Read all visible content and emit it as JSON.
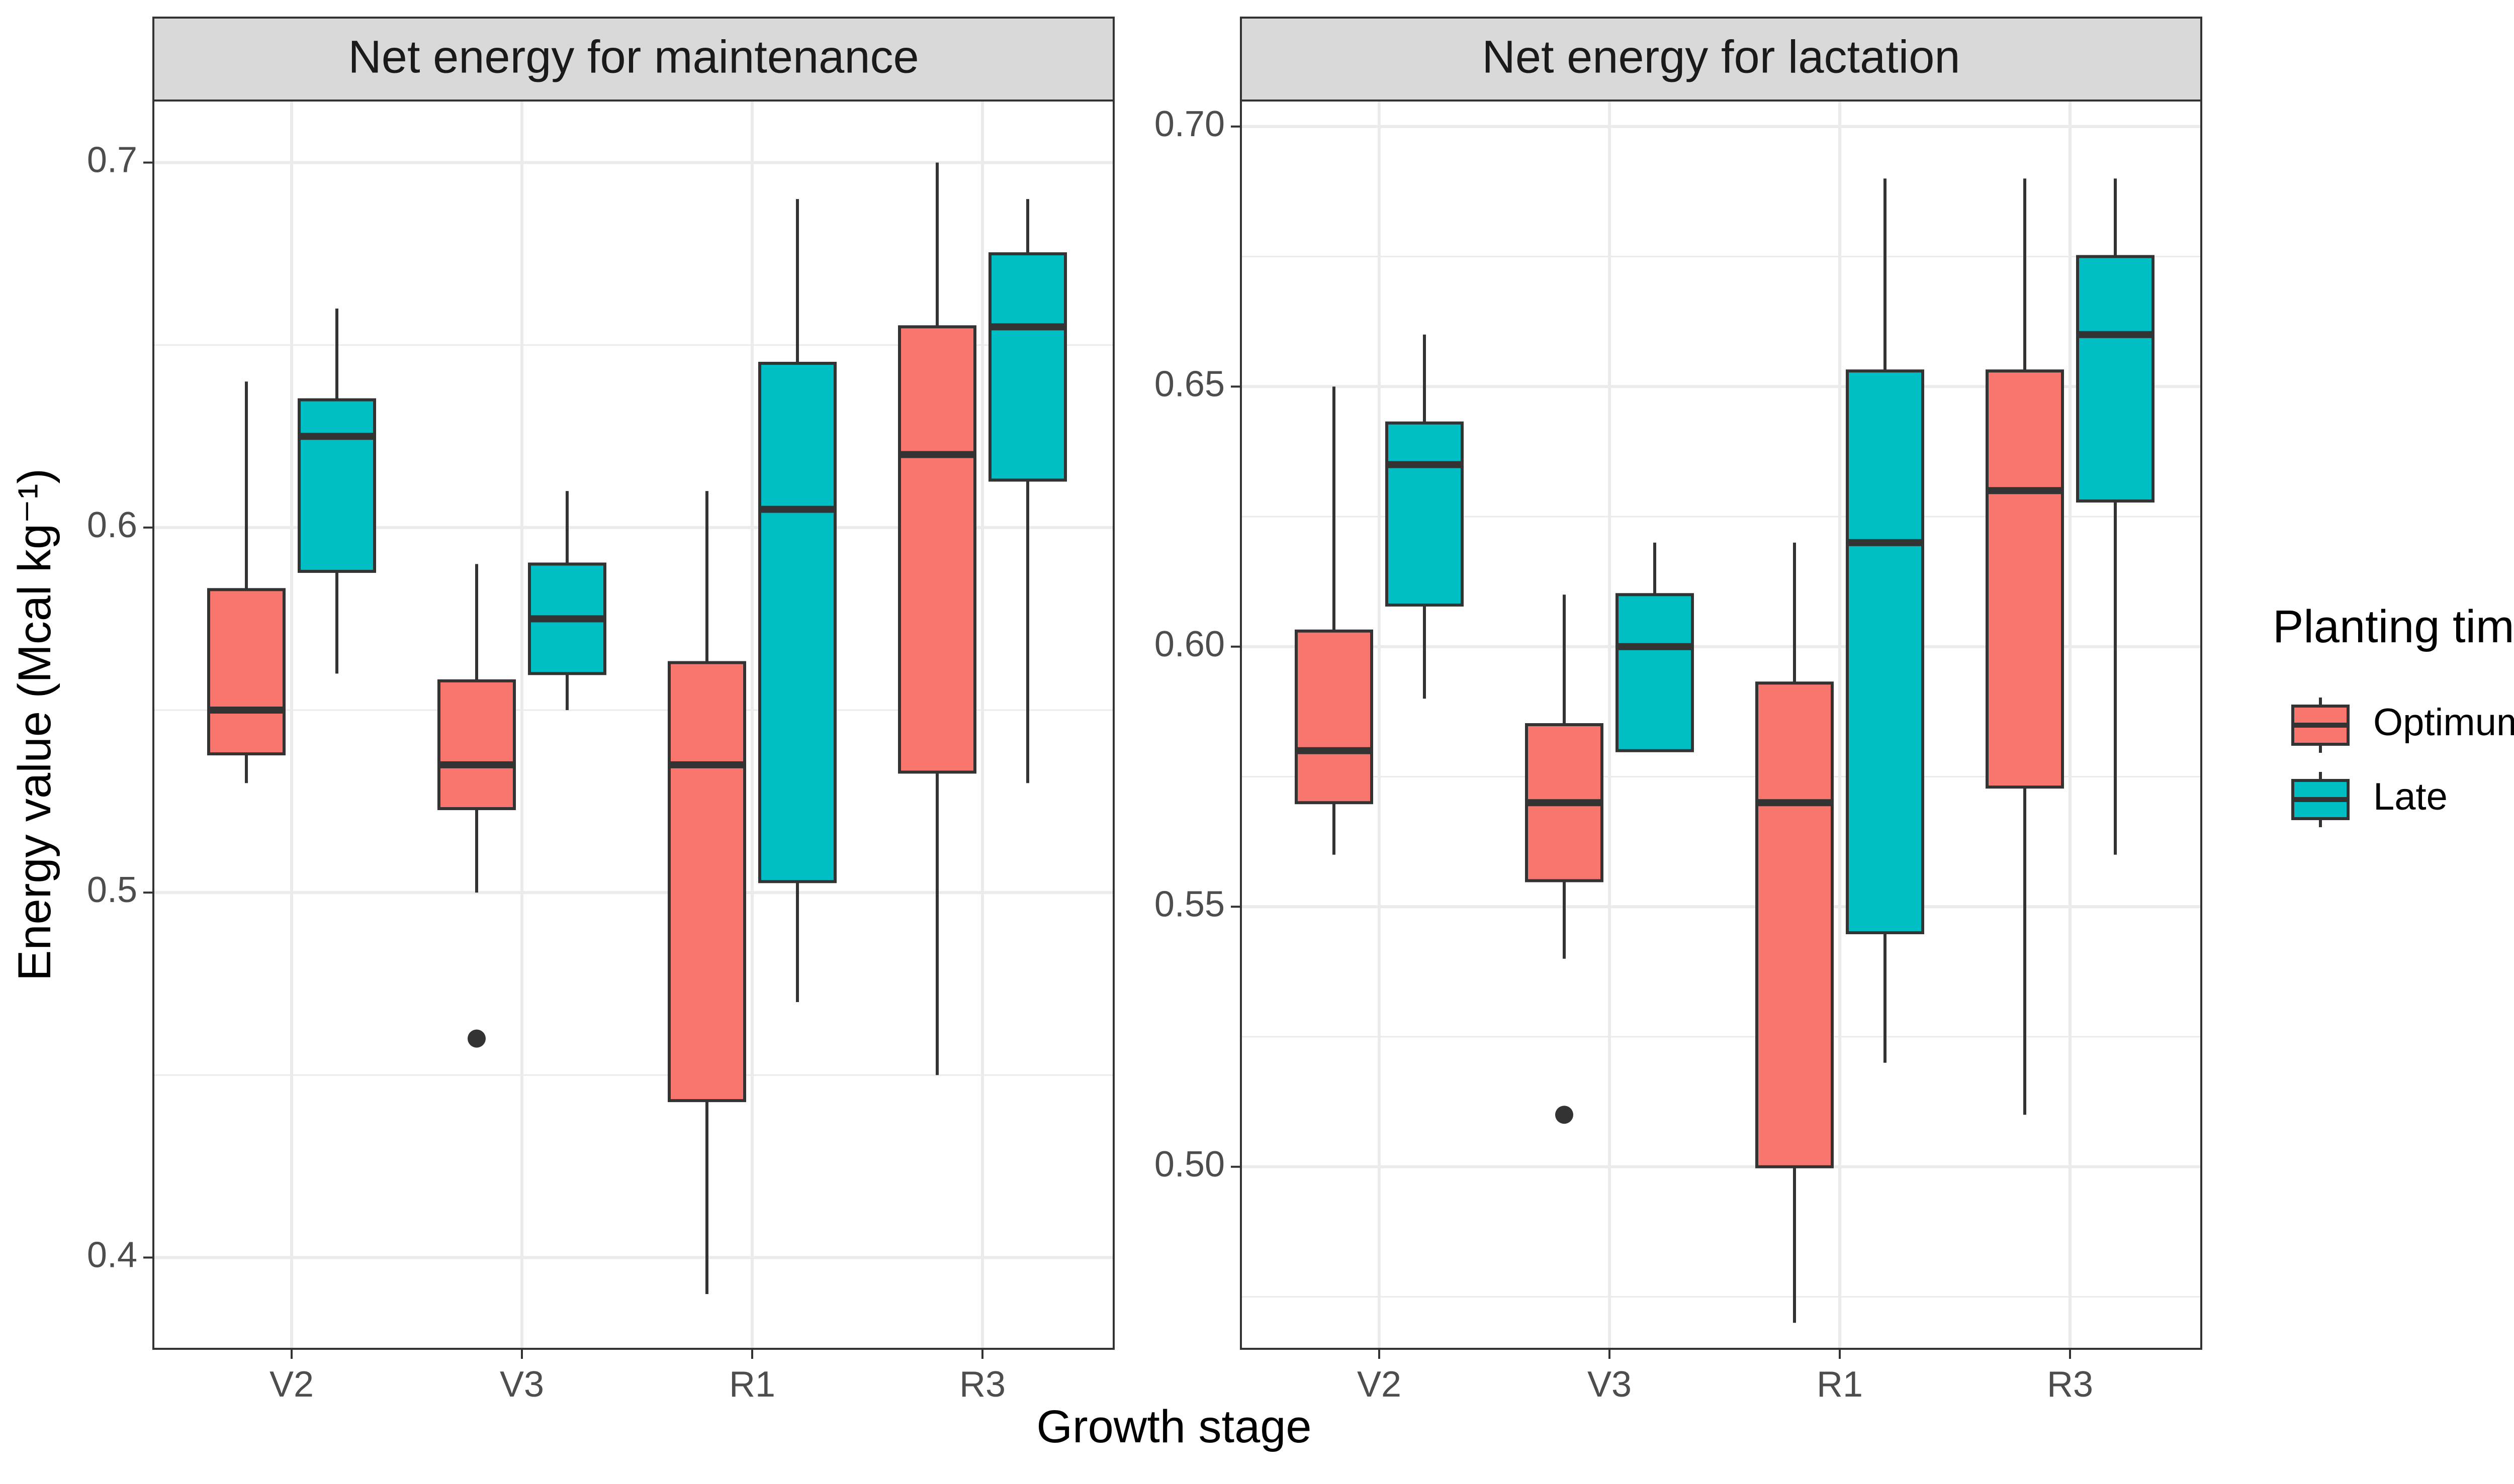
{
  "chart_data": {
    "type": "boxplot",
    "xlabel": "Growth stage",
    "ylabel": "Energy value (Mcal kg⁻¹)",
    "categories": [
      "V2",
      "V3",
      "R1",
      "R3"
    ],
    "legend": {
      "title": "Planting time",
      "position": "right",
      "items": [
        {
          "name": "Optimum",
          "color": "#F8766D"
        },
        {
          "name": "Late",
          "color": "#00BFC4"
        }
      ]
    },
    "colors": {
      "box_stroke": "#333333",
      "grid": "#EBEBEB",
      "strip": "#D9D9D9",
      "axis_text": "#4D4D4D"
    },
    "panels": [
      {
        "title": "Net energy for maintenance",
        "ylim": [
          0.375,
          0.717
        ],
        "yticks": [
          0.4,
          0.5,
          0.6,
          0.7
        ],
        "ytick_labels": [
          "0.4",
          "0.5",
          "0.6",
          "0.7"
        ],
        "series": [
          {
            "name": "Optimum",
            "boxes": [
              {
                "category": "V2",
                "min": 0.53,
                "q1": 0.538,
                "median": 0.55,
                "q3": 0.583,
                "max": 0.64,
                "outliers": []
              },
              {
                "category": "V3",
                "min": 0.5,
                "q1": 0.523,
                "median": 0.535,
                "q3": 0.558,
                "max": 0.59,
                "outliers": [
                  0.46
                ]
              },
              {
                "category": "R1",
                "min": 0.39,
                "q1": 0.443,
                "median": 0.535,
                "q3": 0.563,
                "max": 0.61,
                "outliers": []
              },
              {
                "category": "R3",
                "min": 0.45,
                "q1": 0.533,
                "median": 0.62,
                "q3": 0.655,
                "max": 0.7,
                "outliers": []
              }
            ]
          },
          {
            "name": "Late",
            "boxes": [
              {
                "category": "V2",
                "min": 0.56,
                "q1": 0.588,
                "median": 0.625,
                "q3": 0.635,
                "max": 0.66,
                "outliers": []
              },
              {
                "category": "V3",
                "min": 0.55,
                "q1": 0.56,
                "median": 0.575,
                "q3": 0.59,
                "max": 0.61,
                "outliers": []
              },
              {
                "category": "R1",
                "min": 0.47,
                "q1": 0.503,
                "median": 0.605,
                "q3": 0.645,
                "max": 0.69,
                "outliers": []
              },
              {
                "category": "R3",
                "min": 0.53,
                "q1": 0.613,
                "median": 0.655,
                "q3": 0.675,
                "max": 0.69,
                "outliers": []
              }
            ]
          }
        ]
      },
      {
        "title": "Net energy for lactation",
        "ylim": [
          0.465,
          0.705
        ],
        "yticks": [
          0.5,
          0.55,
          0.6,
          0.65,
          0.7
        ],
        "ytick_labels": [
          "0.50",
          "0.55",
          "0.60",
          "0.65",
          "0.70"
        ],
        "series": [
          {
            "name": "Optimum",
            "boxes": [
              {
                "category": "V2",
                "min": 0.56,
                "q1": 0.57,
                "median": 0.58,
                "q3": 0.603,
                "max": 0.65,
                "outliers": []
              },
              {
                "category": "V3",
                "min": 0.54,
                "q1": 0.555,
                "median": 0.57,
                "q3": 0.585,
                "max": 0.61,
                "outliers": [
                  0.51
                ]
              },
              {
                "category": "R1",
                "min": 0.47,
                "q1": 0.5,
                "median": 0.57,
                "q3": 0.593,
                "max": 0.62,
                "outliers": []
              },
              {
                "category": "R3",
                "min": 0.51,
                "q1": 0.573,
                "median": 0.63,
                "q3": 0.653,
                "max": 0.69,
                "outliers": []
              }
            ]
          },
          {
            "name": "Late",
            "boxes": [
              {
                "category": "V2",
                "min": 0.59,
                "q1": 0.608,
                "median": 0.635,
                "q3": 0.643,
                "max": 0.66,
                "outliers": []
              },
              {
                "category": "V3",
                "min": 0.58,
                "q1": 0.58,
                "median": 0.6,
                "q3": 0.61,
                "max": 0.62,
                "outliers": []
              },
              {
                "category": "R1",
                "min": 0.52,
                "q1": 0.545,
                "median": 0.62,
                "q3": 0.653,
                "max": 0.69,
                "outliers": []
              },
              {
                "category": "R3",
                "min": 0.56,
                "q1": 0.628,
                "median": 0.66,
                "q3": 0.675,
                "max": 0.69,
                "outliers": []
              }
            ]
          }
        ]
      }
    ]
  }
}
